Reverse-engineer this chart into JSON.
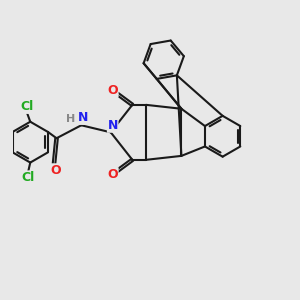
{
  "bg_color": "#e8e8e8",
  "bond_color": "#1a1a1a",
  "bond_width": 1.5,
  "N_color": "#2222ee",
  "O_color": "#ee2222",
  "Cl_color": "#22aa22",
  "H_color": "#888888",
  "font_size": 8.5,
  "dpi": 100,
  "xlim": [
    -0.5,
    6.5
  ],
  "ylim": [
    -2.0,
    5.5
  ]
}
